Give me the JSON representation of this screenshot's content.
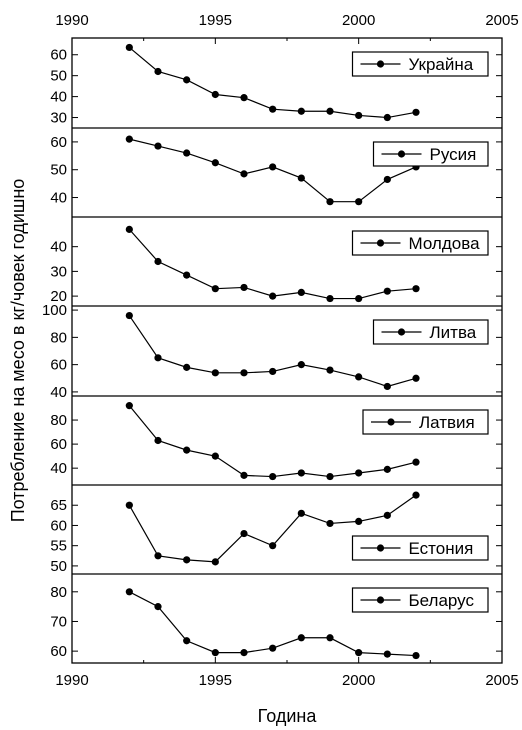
{
  "chart_data": {
    "type": "line",
    "xlabel": "Година",
    "ylabel": "Потребление на месо в кг/човек годишно",
    "xlim": [
      1990,
      2005
    ],
    "xticks": [
      1990,
      1995,
      2000,
      2005
    ],
    "x": [
      1992,
      1993,
      1994,
      1995,
      1996,
      1997,
      1998,
      1999,
      2000,
      2001,
      2002
    ],
    "line_color": "#000000",
    "panels": [
      {
        "name": "Украйна",
        "ylim": [
          25,
          68
        ],
        "yticks": [
          30,
          40,
          50,
          60
        ],
        "values": [
          63.5,
          52,
          48,
          41,
          39.5,
          34,
          33,
          33,
          31,
          30,
          32.5
        ],
        "legend_position": "top-right"
      },
      {
        "name": "Русия",
        "ylim": [
          33,
          65
        ],
        "yticks": [
          40,
          50,
          60
        ],
        "values": [
          61,
          58.5,
          56,
          52.5,
          48.5,
          51,
          47,
          38.5,
          38.5,
          46.5,
          51
        ],
        "legend_position": "top-right"
      },
      {
        "name": "Молдова",
        "ylim": [
          16,
          52
        ],
        "yticks": [
          20,
          30,
          40
        ],
        "values": [
          47,
          34,
          28.5,
          23,
          23.5,
          20,
          21.5,
          19,
          19,
          22,
          23
        ],
        "legend_position": "top-right"
      },
      {
        "name": "Литва",
        "ylim": [
          37,
          103
        ],
        "yticks": [
          40,
          60,
          80,
          100
        ],
        "values": [
          96,
          65,
          58,
          54,
          54,
          55,
          60,
          56,
          51,
          44,
          50
        ],
        "legend_position": "top-right"
      },
      {
        "name": "Латвия",
        "ylim": [
          26,
          100
        ],
        "yticks": [
          40,
          60,
          80
        ],
        "values": [
          92,
          63,
          55,
          50,
          34,
          33,
          36,
          33,
          36,
          39,
          45
        ],
        "legend_position": "top-right"
      },
      {
        "name": "Естония",
        "ylim": [
          48,
          70
        ],
        "yticks": [
          50,
          55,
          60,
          65
        ],
        "values": [
          65,
          52.5,
          51.5,
          51,
          58,
          55,
          63,
          60.5,
          61,
          62.5,
          67.5
        ],
        "legend_position": "bottom-right"
      },
      {
        "name": "Беларус",
        "ylim": [
          56,
          86
        ],
        "yticks": [
          60,
          70,
          80
        ],
        "values": [
          80,
          75,
          63.5,
          59.5,
          59.5,
          61,
          64.5,
          64.5,
          59.5,
          59,
          58.5
        ],
        "legend_position": "top-right"
      }
    ]
  }
}
